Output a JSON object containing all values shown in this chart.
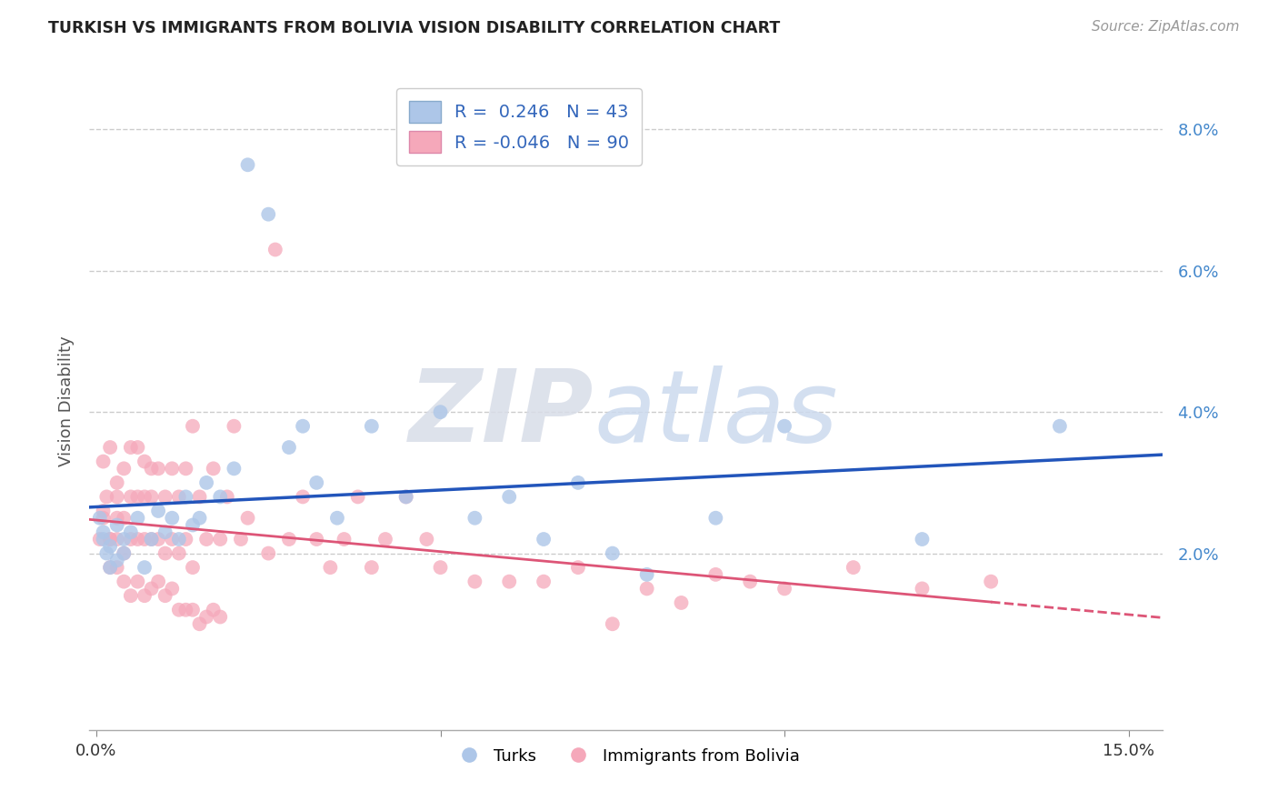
{
  "title": "TURKISH VS IMMIGRANTS FROM BOLIVIA VISION DISABILITY CORRELATION CHART",
  "source": "Source: ZipAtlas.com",
  "ylabel": "Vision Disability",
  "ylim": [
    -0.005,
    0.088
  ],
  "xlim": [
    -0.001,
    0.155
  ],
  "ytick_vals": [
    0.02,
    0.04,
    0.06,
    0.08
  ],
  "ytick_labels": [
    "2.0%",
    "4.0%",
    "6.0%",
    "8.0%"
  ],
  "xtick_vals": [
    0.0,
    0.05,
    0.1,
    0.15
  ],
  "xtick_labels": [
    "0.0%",
    "",
    "",
    "15.0%"
  ],
  "legend_blue_label": "R =  0.246   N = 43",
  "legend_pink_label": "R = -0.046   N = 90",
  "blue_color": "#adc6e8",
  "pink_color": "#f5a8ba",
  "blue_line_color": "#2255bb",
  "pink_line_color": "#dd5577",
  "watermark_zip": "ZIP",
  "watermark_atlas": "atlas",
  "label_turks": "Turks",
  "label_bolivia": "Immigrants from Bolivia",
  "turks_x": [
    0.0005,
    0.001,
    0.0015,
    0.001,
    0.002,
    0.002,
    0.003,
    0.003,
    0.004,
    0.004,
    0.005,
    0.006,
    0.007,
    0.008,
    0.009,
    0.01,
    0.011,
    0.012,
    0.013,
    0.014,
    0.015,
    0.016,
    0.018,
    0.02,
    0.022,
    0.025,
    0.028,
    0.03,
    0.032,
    0.035,
    0.04,
    0.045,
    0.05,
    0.055,
    0.06,
    0.065,
    0.07,
    0.075,
    0.08,
    0.09,
    0.1,
    0.12,
    0.14
  ],
  "turks_y": [
    0.025,
    0.022,
    0.02,
    0.023,
    0.018,
    0.021,
    0.019,
    0.024,
    0.022,
    0.02,
    0.023,
    0.025,
    0.018,
    0.022,
    0.026,
    0.023,
    0.025,
    0.022,
    0.028,
    0.024,
    0.025,
    0.03,
    0.028,
    0.032,
    0.075,
    0.068,
    0.035,
    0.038,
    0.03,
    0.025,
    0.038,
    0.028,
    0.04,
    0.025,
    0.028,
    0.022,
    0.03,
    0.02,
    0.017,
    0.025,
    0.038,
    0.022,
    0.038
  ],
  "bolivia_x": [
    0.0005,
    0.001,
    0.001,
    0.0015,
    0.002,
    0.002,
    0.002,
    0.003,
    0.003,
    0.003,
    0.003,
    0.004,
    0.004,
    0.004,
    0.005,
    0.005,
    0.005,
    0.006,
    0.006,
    0.006,
    0.007,
    0.007,
    0.007,
    0.008,
    0.008,
    0.008,
    0.009,
    0.009,
    0.01,
    0.01,
    0.011,
    0.011,
    0.012,
    0.012,
    0.013,
    0.013,
    0.014,
    0.014,
    0.015,
    0.016,
    0.017,
    0.018,
    0.019,
    0.02,
    0.021,
    0.022,
    0.025,
    0.026,
    0.028,
    0.03,
    0.032,
    0.034,
    0.036,
    0.038,
    0.04,
    0.042,
    0.045,
    0.048,
    0.05,
    0.055,
    0.06,
    0.065,
    0.07,
    0.075,
    0.08,
    0.085,
    0.09,
    0.095,
    0.1,
    0.11,
    0.12,
    0.13,
    0.001,
    0.002,
    0.003,
    0.004,
    0.005,
    0.006,
    0.007,
    0.008,
    0.009,
    0.01,
    0.011,
    0.012,
    0.013,
    0.014,
    0.015,
    0.016,
    0.017,
    0.018
  ],
  "bolivia_y": [
    0.022,
    0.033,
    0.025,
    0.028,
    0.035,
    0.022,
    0.018,
    0.03,
    0.025,
    0.022,
    0.028,
    0.032,
    0.025,
    0.02,
    0.035,
    0.028,
    0.022,
    0.035,
    0.028,
    0.022,
    0.033,
    0.028,
    0.022,
    0.032,
    0.028,
    0.022,
    0.032,
    0.022,
    0.028,
    0.02,
    0.032,
    0.022,
    0.028,
    0.02,
    0.032,
    0.022,
    0.038,
    0.018,
    0.028,
    0.022,
    0.032,
    0.022,
    0.028,
    0.038,
    0.022,
    0.025,
    0.02,
    0.063,
    0.022,
    0.028,
    0.022,
    0.018,
    0.022,
    0.028,
    0.018,
    0.022,
    0.028,
    0.022,
    0.018,
    0.016,
    0.016,
    0.016,
    0.018,
    0.01,
    0.015,
    0.013,
    0.017,
    0.016,
    0.015,
    0.018,
    0.015,
    0.016,
    0.026,
    0.022,
    0.018,
    0.016,
    0.014,
    0.016,
    0.014,
    0.015,
    0.016,
    0.014,
    0.015,
    0.012,
    0.012,
    0.012,
    0.01,
    0.011,
    0.012,
    0.011
  ]
}
